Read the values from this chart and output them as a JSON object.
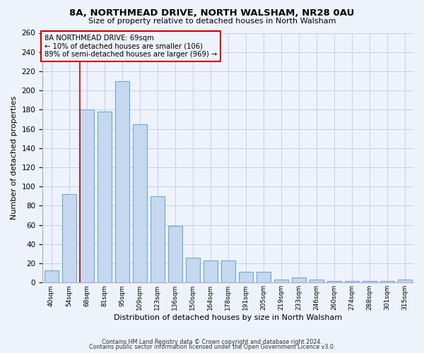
{
  "title": "8A, NORTHMEAD DRIVE, NORTH WALSHAM, NR28 0AU",
  "subtitle": "Size of property relative to detached houses in North Walsham",
  "xlabel": "Distribution of detached houses by size in North Walsham",
  "ylabel": "Number of detached properties",
  "bar_labels": [
    "40sqm",
    "54sqm",
    "68sqm",
    "81sqm",
    "95sqm",
    "109sqm",
    "123sqm",
    "136sqm",
    "150sqm",
    "164sqm",
    "178sqm",
    "191sqm",
    "205sqm",
    "219sqm",
    "233sqm",
    "246sqm",
    "260sqm",
    "274sqm",
    "288sqm",
    "301sqm",
    "315sqm"
  ],
  "bar_values": [
    13,
    92,
    180,
    178,
    210,
    165,
    90,
    59,
    26,
    23,
    23,
    11,
    11,
    3,
    5,
    3,
    2,
    2,
    2,
    2,
    3
  ],
  "bar_color": "#c5d8ef",
  "bar_edgecolor": "#6aaad4",
  "vline_x_index": 2,
  "vline_color": "#cc0000",
  "annotation_text": "8A NORTHMEAD DRIVE: 69sqm\n← 10% of detached houses are smaller (106)\n89% of semi-detached houses are larger (969) →",
  "annotation_box_color": "#cc0000",
  "ylim": [
    0,
    260
  ],
  "yticks": [
    0,
    20,
    40,
    60,
    80,
    100,
    120,
    140,
    160,
    180,
    200,
    220,
    240,
    260
  ],
  "footer1": "Contains HM Land Registry data © Crown copyright and database right 2024.",
  "footer2": "Contains public sector information licensed under the Open Government Licence v3.0.",
  "bg_color": "#eef2fb",
  "grid_color": "#c5cfe8"
}
